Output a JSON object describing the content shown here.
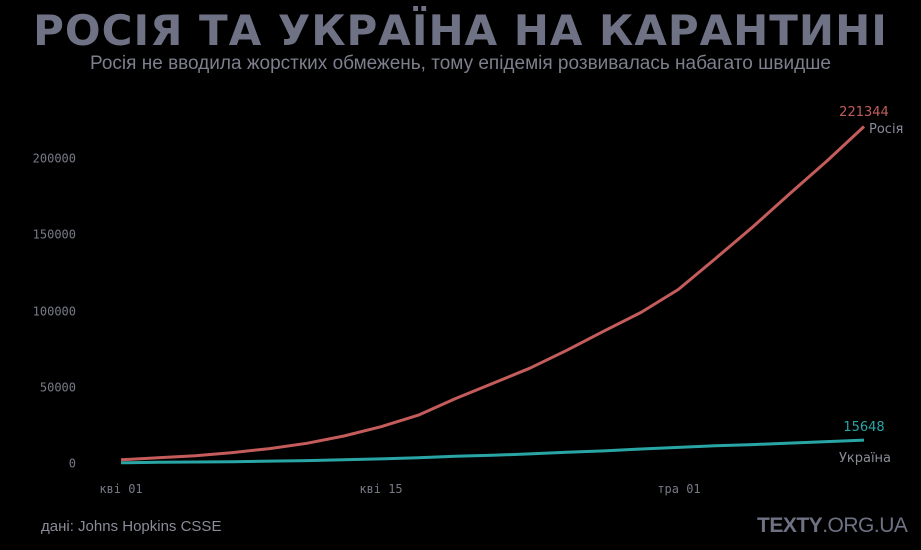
{
  "header": {
    "title": "РОСІЯ ТА УКРАЇНА НА КАРАНТИНІ",
    "subtitle": "Росія не вводила жорстких обмежень, тому епідемія розвивалась набагато швидше"
  },
  "footer": {
    "source": "дані: Johns Hopkins CSSE",
    "brand_bold": "TEXTY",
    "brand_rest": ".ORG.UA"
  },
  "colors": {
    "background": "#000000",
    "russia": "#c45c5c",
    "ukraine": "#2aa5a5",
    "text": "#7d7f8c"
  },
  "chart_data": {
    "type": "line",
    "title": "РОСІЯ ТА УКРАЇНА НА КАРАНТИНІ",
    "subtitle": "Росія не вводила жорстких обмежень, тому епідемія розвивалась набагато швидше",
    "xlabel": "",
    "ylabel": "",
    "x_ticks": [
      "кві 01",
      "кві 15",
      "тра 01"
    ],
    "y_ticks": [
      0,
      50000,
      100000,
      150000,
      200000
    ],
    "ylim": [
      0,
      221344
    ],
    "grid": false,
    "legend_position": "end-of-line labels",
    "x": [
      "04-01",
      "04-03",
      "04-05",
      "04-07",
      "04-09",
      "04-11",
      "04-13",
      "04-15",
      "04-17",
      "04-19",
      "04-21",
      "04-23",
      "04-25",
      "04-27",
      "04-29",
      "05-01",
      "05-03",
      "05-05",
      "05-07",
      "05-09",
      "05-11"
    ],
    "series": [
      {
        "name": "Росія",
        "end_value": "221344",
        "values": [
          2777,
          4149,
          5389,
          7497,
          10131,
          13584,
          18328,
          24490,
          32008,
          42853,
          52763,
          62773,
          74588,
          87147,
          99399,
          114431,
          134686,
          155370,
          177160,
          198676,
          221344
        ]
      },
      {
        "name": "Україна",
        "end_value": "15648",
        "values": [
          804,
          1096,
          1308,
          1462,
          1892,
          2203,
          2777,
          3372,
          4161,
          5106,
          5710,
          6592,
          7647,
          8617,
          9866,
          10861,
          11913,
          12697,
          13691,
          14710,
          15648
        ]
      }
    ]
  }
}
